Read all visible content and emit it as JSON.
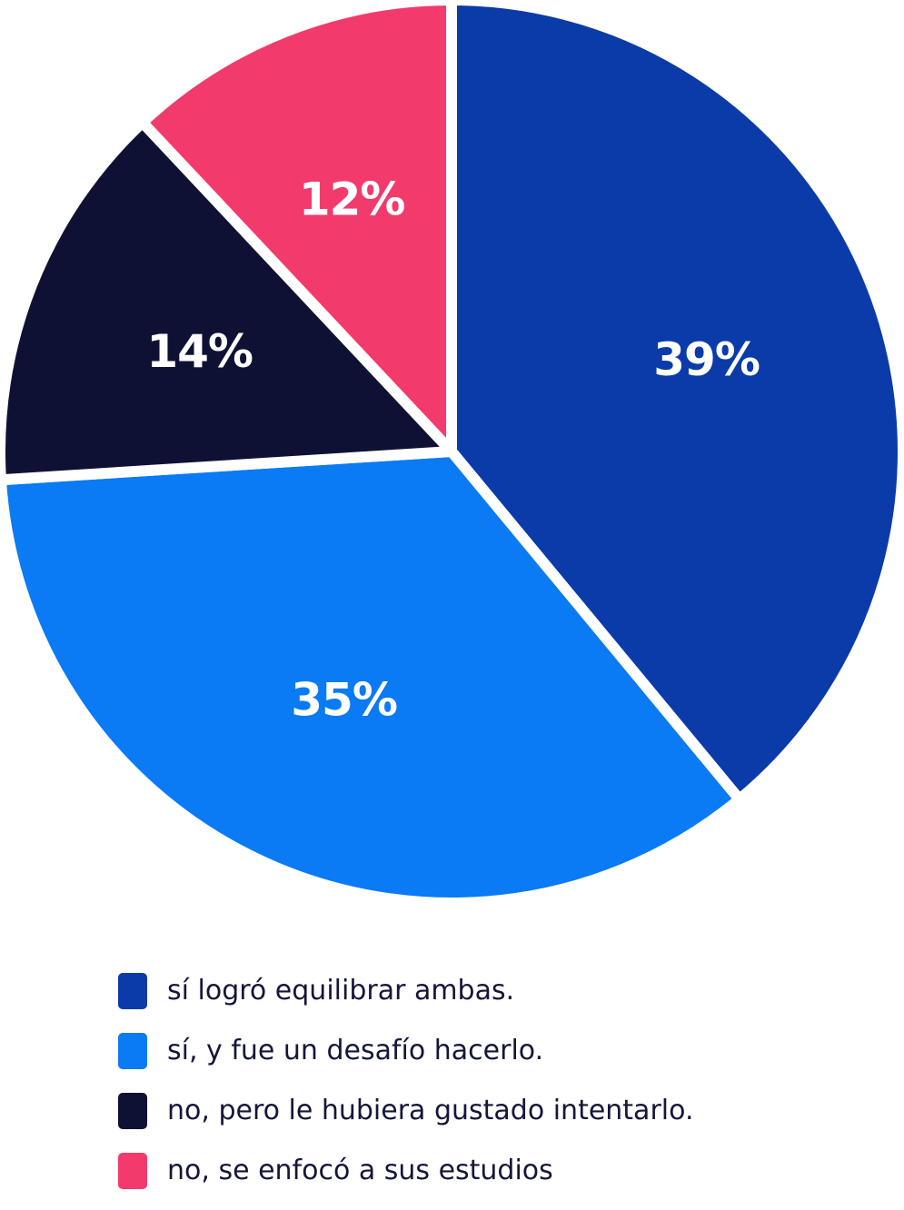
{
  "chart_data": {
    "type": "pie",
    "title": "",
    "slices": [
      {
        "label": "sí logró equilibrar ambas.",
        "value": 39,
        "display": "39%",
        "color": "#0b3ba8"
      },
      {
        "label": "sí, y fue un desafío hacerlo.",
        "value": 35,
        "display": "35%",
        "color": "#0a7af5"
      },
      {
        "label": "no, pero le hubiera gustado intentarlo.",
        "value": 14,
        "display": "14%",
        "color": "#0f1134"
      },
      {
        "label": "no, se enfocó a sus estudios",
        "value": 12,
        "display": "12%",
        "color": "#f23a6c"
      }
    ],
    "start_angle": "12 o'clock",
    "direction": "clockwise",
    "legend_position": "bottom"
  }
}
